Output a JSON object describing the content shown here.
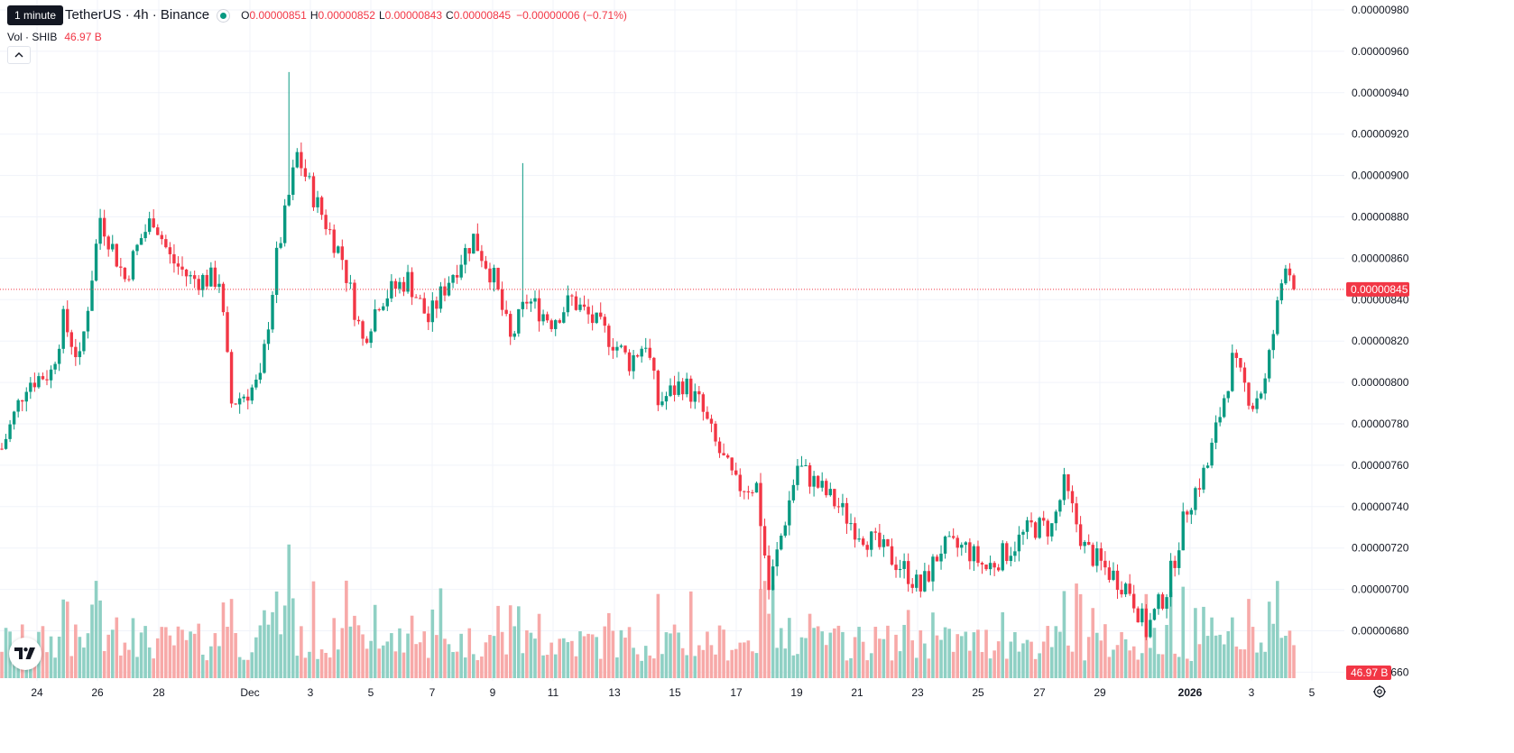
{
  "legend": {
    "tooltip": "1 minute",
    "title": "TetherUS · 4h · Binance",
    "open_label": "O",
    "open": "0.00000851",
    "high_label": "H",
    "high": "0.00000852",
    "low_label": "L",
    "low": "0.00000843",
    "close_label": "C",
    "close": "0.00000845",
    "change": "−0.00000006 (−0.71%)",
    "volume_label": "Vol · SHIB",
    "volume_value": "46.97 B"
  },
  "price_axis": {
    "ticks": [
      "0.00000980",
      "0.00000960",
      "0.00000940",
      "0.00000920",
      "0.00000900",
      "0.00000880",
      "0.00000860",
      "0.00000840",
      "0.00000820",
      "0.00000800",
      "0.00000780",
      "0.00000760",
      "0.00000740",
      "0.00000720",
      "0.00000700",
      "0.00000680",
      "0.00000660"
    ],
    "last_price_tag": "0.00000845",
    "volume_tag": "46.97 B"
  },
  "time_axis": {
    "labels": [
      {
        "text": "24",
        "bold": false
      },
      {
        "text": "26",
        "bold": false
      },
      {
        "text": "28",
        "bold": false
      },
      {
        "text": "Dec",
        "bold": false
      },
      {
        "text": "3",
        "bold": false
      },
      {
        "text": "5",
        "bold": false
      },
      {
        "text": "7",
        "bold": false
      },
      {
        "text": "9",
        "bold": false
      },
      {
        "text": "11",
        "bold": false
      },
      {
        "text": "13",
        "bold": false
      },
      {
        "text": "15",
        "bold": false
      },
      {
        "text": "17",
        "bold": false
      },
      {
        "text": "19",
        "bold": false
      },
      {
        "text": "21",
        "bold": false
      },
      {
        "text": "23",
        "bold": false
      },
      {
        "text": "25",
        "bold": false
      },
      {
        "text": "27",
        "bold": false
      },
      {
        "text": "29",
        "bold": false
      },
      {
        "text": "2026",
        "bold": true
      },
      {
        "text": "3",
        "bold": false
      },
      {
        "text": "5",
        "bold": false
      }
    ]
  },
  "colors": {
    "up": "#089981",
    "down": "#f23645",
    "vol_up": "#8fd0c4",
    "vol_down": "#f7a9a8",
    "grid": "#f0f3fa"
  },
  "icons": [
    "tradingview-logo-icon",
    "chevron-up-icon",
    "settings-icon"
  ],
  "chart_data": {
    "type": "candlestick",
    "title": "",
    "interval": "4h",
    "x_range": [
      "2025-11-23",
      "2026-01-05"
    ],
    "ylim": [
      6.55e-06,
      9.85e-06
    ],
    "volume_axis_max": 100,
    "candles": []
  }
}
